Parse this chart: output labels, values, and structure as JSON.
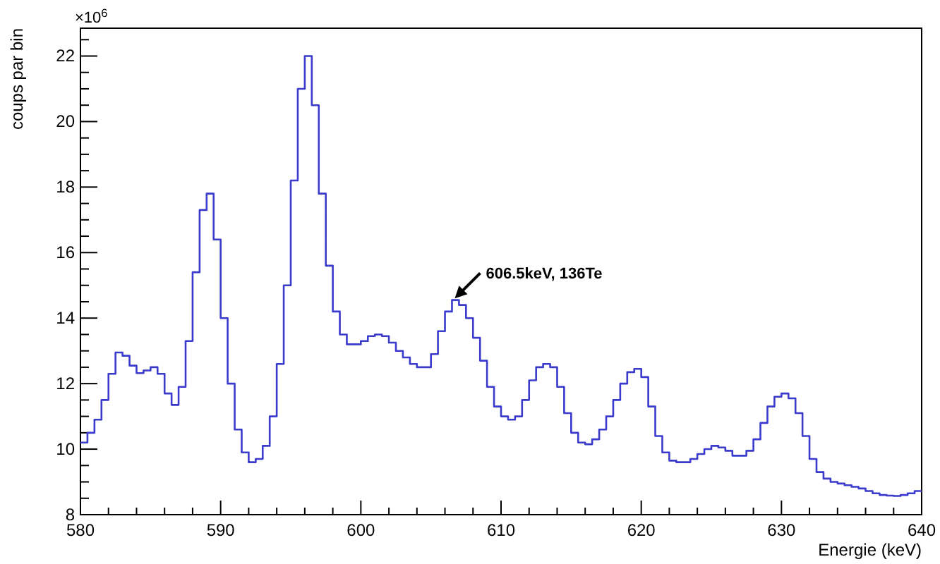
{
  "chart_data": {
    "type": "histogram",
    "xlabel": "Energie (keV)",
    "ylabel": "coups par bin",
    "color": "#3a3acc",
    "bins": [
      580,
      580.5,
      581,
      581.5,
      582,
      582.5,
      583,
      583.5,
      584,
      584.5,
      585,
      585.5,
      586,
      586.5,
      587,
      587.5,
      588,
      588.5,
      589,
      589.5,
      590,
      590.5,
      591,
      591.5,
      592,
      592.5,
      593,
      593.5,
      594,
      594.5,
      595,
      595.5,
      596,
      596.5,
      597,
      597.5,
      598,
      598.5,
      599,
      599.5,
      600,
      600.5,
      601,
      601.5,
      602,
      602.5,
      603,
      603.5,
      604,
      604.5,
      605,
      605.5,
      606,
      606.5,
      607,
      607.5,
      608,
      608.5,
      609,
      609.5,
      610,
      610.5,
      611,
      611.5,
      612,
      612.5,
      613,
      613.5,
      614,
      614.5,
      615,
      615.5,
      616,
      616.5,
      617,
      617.5,
      618,
      618.5,
      619,
      619.5,
      620,
      620.5,
      621,
      621.5,
      622,
      622.5,
      623,
      623.5,
      624,
      624.5,
      625,
      625.5,
      626,
      626.5,
      627,
      627.5,
      628,
      628.5,
      629,
      629.5,
      630,
      630.5,
      631,
      631.5,
      632,
      632.5,
      633,
      633.5,
      634,
      634.5,
      635,
      635.5,
      636,
      636.5,
      637,
      637.5,
      638,
      638.5,
      639,
      639.5,
      640
    ],
    "values": [
      10.2,
      10.5,
      10.9,
      11.5,
      12.3,
      12.95,
      12.85,
      12.55,
      12.32,
      12.4,
      12.5,
      12.3,
      11.7,
      11.35,
      11.9,
      13.3,
      15.4,
      17.3,
      17.8,
      16.4,
      14.0,
      12.0,
      10.6,
      9.9,
      9.6,
      9.7,
      10.1,
      11.0,
      12.6,
      15.0,
      18.2,
      21.0,
      22.0,
      20.5,
      17.8,
      15.6,
      14.2,
      13.5,
      13.2,
      13.2,
      13.3,
      13.45,
      13.5,
      13.45,
      13.25,
      13.0,
      12.8,
      12.6,
      12.5,
      12.5,
      12.9,
      13.6,
      14.2,
      14.55,
      14.4,
      14.0,
      13.4,
      12.7,
      11.9,
      11.3,
      11.0,
      10.9,
      11.0,
      11.5,
      12.1,
      12.5,
      12.6,
      12.5,
      11.9,
      11.1,
      10.5,
      10.2,
      10.15,
      10.3,
      10.6,
      11.0,
      11.5,
      12.0,
      12.35,
      12.45,
      12.2,
      11.3,
      10.4,
      9.9,
      9.65,
      9.6,
      9.6,
      9.7,
      9.85,
      10.0,
      10.1,
      10.05,
      9.95,
      9.8,
      9.8,
      9.95,
      10.3,
      10.8,
      11.3,
      11.6,
      11.7,
      11.55,
      11.1,
      10.4,
      9.7,
      9.3,
      9.1,
      9.0,
      8.95,
      8.9,
      8.85,
      8.8,
      8.72,
      8.65,
      8.6,
      8.58,
      8.57,
      8.6,
      8.65,
      8.72
    ],
    "xlim": [
      580,
      640
    ],
    "ylim": [
      8,
      22.85
    ],
    "xticks": [
      580,
      {
        "value": 582,
        "label": null
      },
      {
        "value": 584,
        "label": null
      },
      {
        "value": 586,
        "label": null
      },
      {
        "value": 588,
        "label": null
      },
      590,
      {
        "value": 592,
        "label": null
      },
      {
        "value": 594,
        "label": null
      },
      {
        "value": 596,
        "label": null
      },
      {
        "value": 598,
        "label": null
      },
      600,
      {
        "value": 602,
        "label": null
      },
      {
        "value": 604,
        "label": null
      },
      {
        "value": 606,
        "label": null
      },
      {
        "value": 608,
        "label": null
      },
      610,
      {
        "value": 612,
        "label": null
      },
      {
        "value": 614,
        "label": null
      },
      {
        "value": 616,
        "label": null
      },
      {
        "value": 618,
        "label": null
      },
      620,
      {
        "value": 622,
        "label": null
      },
      {
        "value": 624,
        "label": null
      },
      {
        "value": 626,
        "label": null
      },
      {
        "value": 628,
        "label": null
      },
      630,
      {
        "value": 632,
        "label": null
      },
      {
        "value": 634,
        "label": null
      },
      {
        "value": 636,
        "label": null
      },
      {
        "value": 638,
        "label": null
      },
      640
    ],
    "yticks": [
      8,
      {
        "value": 8.5,
        "label": null
      },
      {
        "value": 9,
        "label": null
      },
      {
        "value": 9.5,
        "label": null
      },
      10,
      {
        "value": 10.5,
        "label": null
      },
      {
        "value": 11,
        "label": null
      },
      {
        "value": 11.5,
        "label": null
      },
      12,
      {
        "value": 12.5,
        "label": null
      },
      {
        "value": 13,
        "label": null
      },
      {
        "value": 13.5,
        "label": null
      },
      14,
      {
        "value": 14.5,
        "label": null
      },
      {
        "value": 15,
        "label": null
      },
      {
        "value": 15.5,
        "label": null
      },
      16,
      {
        "value": 16.5,
        "label": null
      },
      {
        "value": 17,
        "label": null
      },
      {
        "value": 17.5,
        "label": null
      },
      18,
      {
        "value": 18.5,
        "label": null
      },
      {
        "value": 19,
        "label": null
      },
      {
        "value": 19.5,
        "label": null
      },
      20,
      {
        "value": 20.5,
        "label": null
      },
      {
        "value": 21,
        "label": null
      },
      {
        "value": 21.5,
        "label": null
      },
      22,
      {
        "value": 22.5,
        "label": null
      }
    ],
    "annotations": [
      "×10$^{6}$",
      {
        "text": "606.5keV, 136Te",
        "x": 606.7,
        "y": 14.6
      }
    ]
  }
}
